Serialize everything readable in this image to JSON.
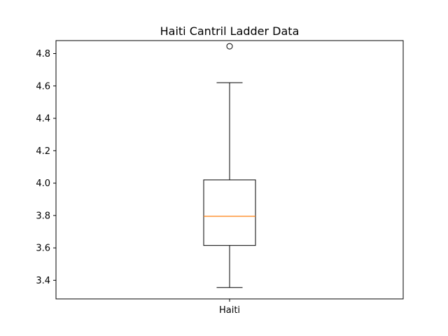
{
  "chart_data": {
    "type": "box",
    "title": "Haiti Cantril Ladder Data",
    "xlabel": "",
    "ylabel": "",
    "categories": [
      "Haiti"
    ],
    "boxes": [
      {
        "whisker_low": 3.355,
        "q1": 3.615,
        "median": 3.795,
        "q3": 4.02,
        "whisker_high": 4.62,
        "fliers": [
          4.845
        ]
      }
    ],
    "ylim": [
      3.285,
      4.88
    ],
    "yticks": [
      3.4,
      3.6,
      3.8,
      4.0,
      4.2,
      4.4,
      4.6,
      4.8
    ],
    "ytick_labels": [
      "3.4",
      "3.6",
      "3.8",
      "4.0",
      "4.2",
      "4.4",
      "4.6",
      "4.8"
    ],
    "grid": false,
    "legend": "none"
  },
  "colors": {
    "box_edge": "#000000",
    "median_line": "#ff7f0e",
    "background": "#ffffff",
    "axes_edge": "#000000"
  }
}
